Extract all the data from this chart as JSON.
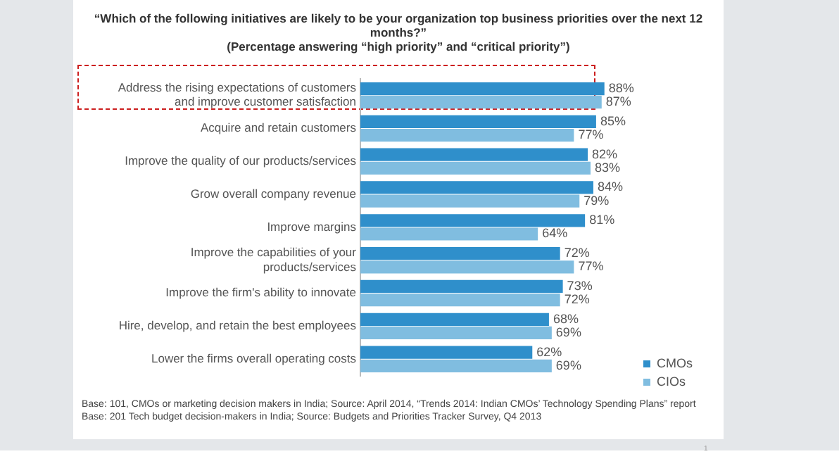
{
  "chart_data": {
    "type": "bar",
    "orientation": "horizontal",
    "title": "“Which of the following initiatives are likely to be your organization top business priorities over the next 12 months?”",
    "subtitle": "(Percentage answering “high priority” and “critical priority”)",
    "categories": [
      "Address the rising expectations of customers and improve customer satisfaction",
      "Acquire and retain customers",
      "Improve the quality of our products/services",
      "Grow overall company revenue",
      "Improve margins",
      "Improve the capabilities of your products/services",
      "Improve the firm's ability to innovate",
      "Hire, develop, and retain the best employees",
      "Lower the firms overall operating costs"
    ],
    "series": [
      {
        "name": "CMOs",
        "color": "#2f8fcb",
        "values": [
          88,
          85,
          82,
          84,
          81,
          72,
          73,
          68,
          62
        ],
        "value_labels": [
          "88%",
          "85%",
          "82%",
          "84%",
          "81%",
          "72%",
          "73%",
          "68%",
          "62%"
        ]
      },
      {
        "name": "CIOs",
        "color": "#80bde0",
        "values": [
          87,
          77,
          83,
          79,
          64,
          77,
          72,
          69,
          69
        ],
        "value_labels": [
          "87%",
          "77%",
          "83%",
          "79%",
          "64%",
          "77%",
          "72%",
          "69%",
          "69%"
        ]
      }
    ],
    "legend": "right",
    "annotations": [
      "Base: 101, CMOs or marketing decision makers in India; Source: April 2014, “Trends 2014: Indian CMOs’ Technology Spending Plans” report",
      "Base: 201 Tech budget decision-makers in India; Source: Budgets and Priorities Tracker Survey, Q4 2013",
      "1"
    ]
  }
}
